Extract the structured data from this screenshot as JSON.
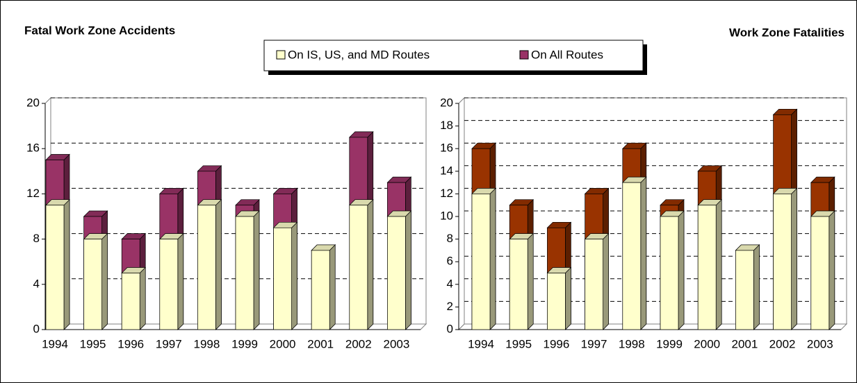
{
  "chart_data": [
    {
      "type": "bar",
      "title": "Fatal Work Zone Accidents",
      "categories": [
        "1994",
        "1995",
        "1996",
        "1997",
        "1998",
        "1999",
        "2000",
        "2001",
        "2002",
        "2003"
      ],
      "series": [
        {
          "name": "On IS, US, and MD Routes",
          "color": "#ffffcc",
          "values": [
            11,
            8,
            5,
            8,
            11,
            10,
            9,
            7,
            11,
            10
          ]
        },
        {
          "name": "On All Routes",
          "color": "#993366",
          "values": [
            15,
            10,
            8,
            12,
            14,
            11,
            12,
            7,
            17,
            13
          ]
        }
      ],
      "ylim": [
        0,
        20
      ],
      "yticks": [
        0,
        4,
        8,
        12,
        16,
        20
      ],
      "grid": true
    },
    {
      "type": "bar",
      "title": "Work Zone Fatalities",
      "categories": [
        "1994",
        "1995",
        "1996",
        "1997",
        "1998",
        "1999",
        "2000",
        "2001",
        "2002",
        "2003"
      ],
      "series": [
        {
          "color": "#ffffcc",
          "values": [
            12,
            8,
            5,
            8,
            13,
            10,
            11,
            7,
            12,
            10
          ]
        },
        {
          "color": "#993300",
          "values": [
            16,
            11,
            9,
            12,
            16,
            11,
            14,
            7,
            19,
            13
          ]
        }
      ],
      "ylim": [
        0,
        20
      ],
      "yticks": [
        0,
        2,
        4,
        6,
        8,
        10,
        12,
        14,
        16,
        18,
        20
      ],
      "grid": true
    }
  ]
}
